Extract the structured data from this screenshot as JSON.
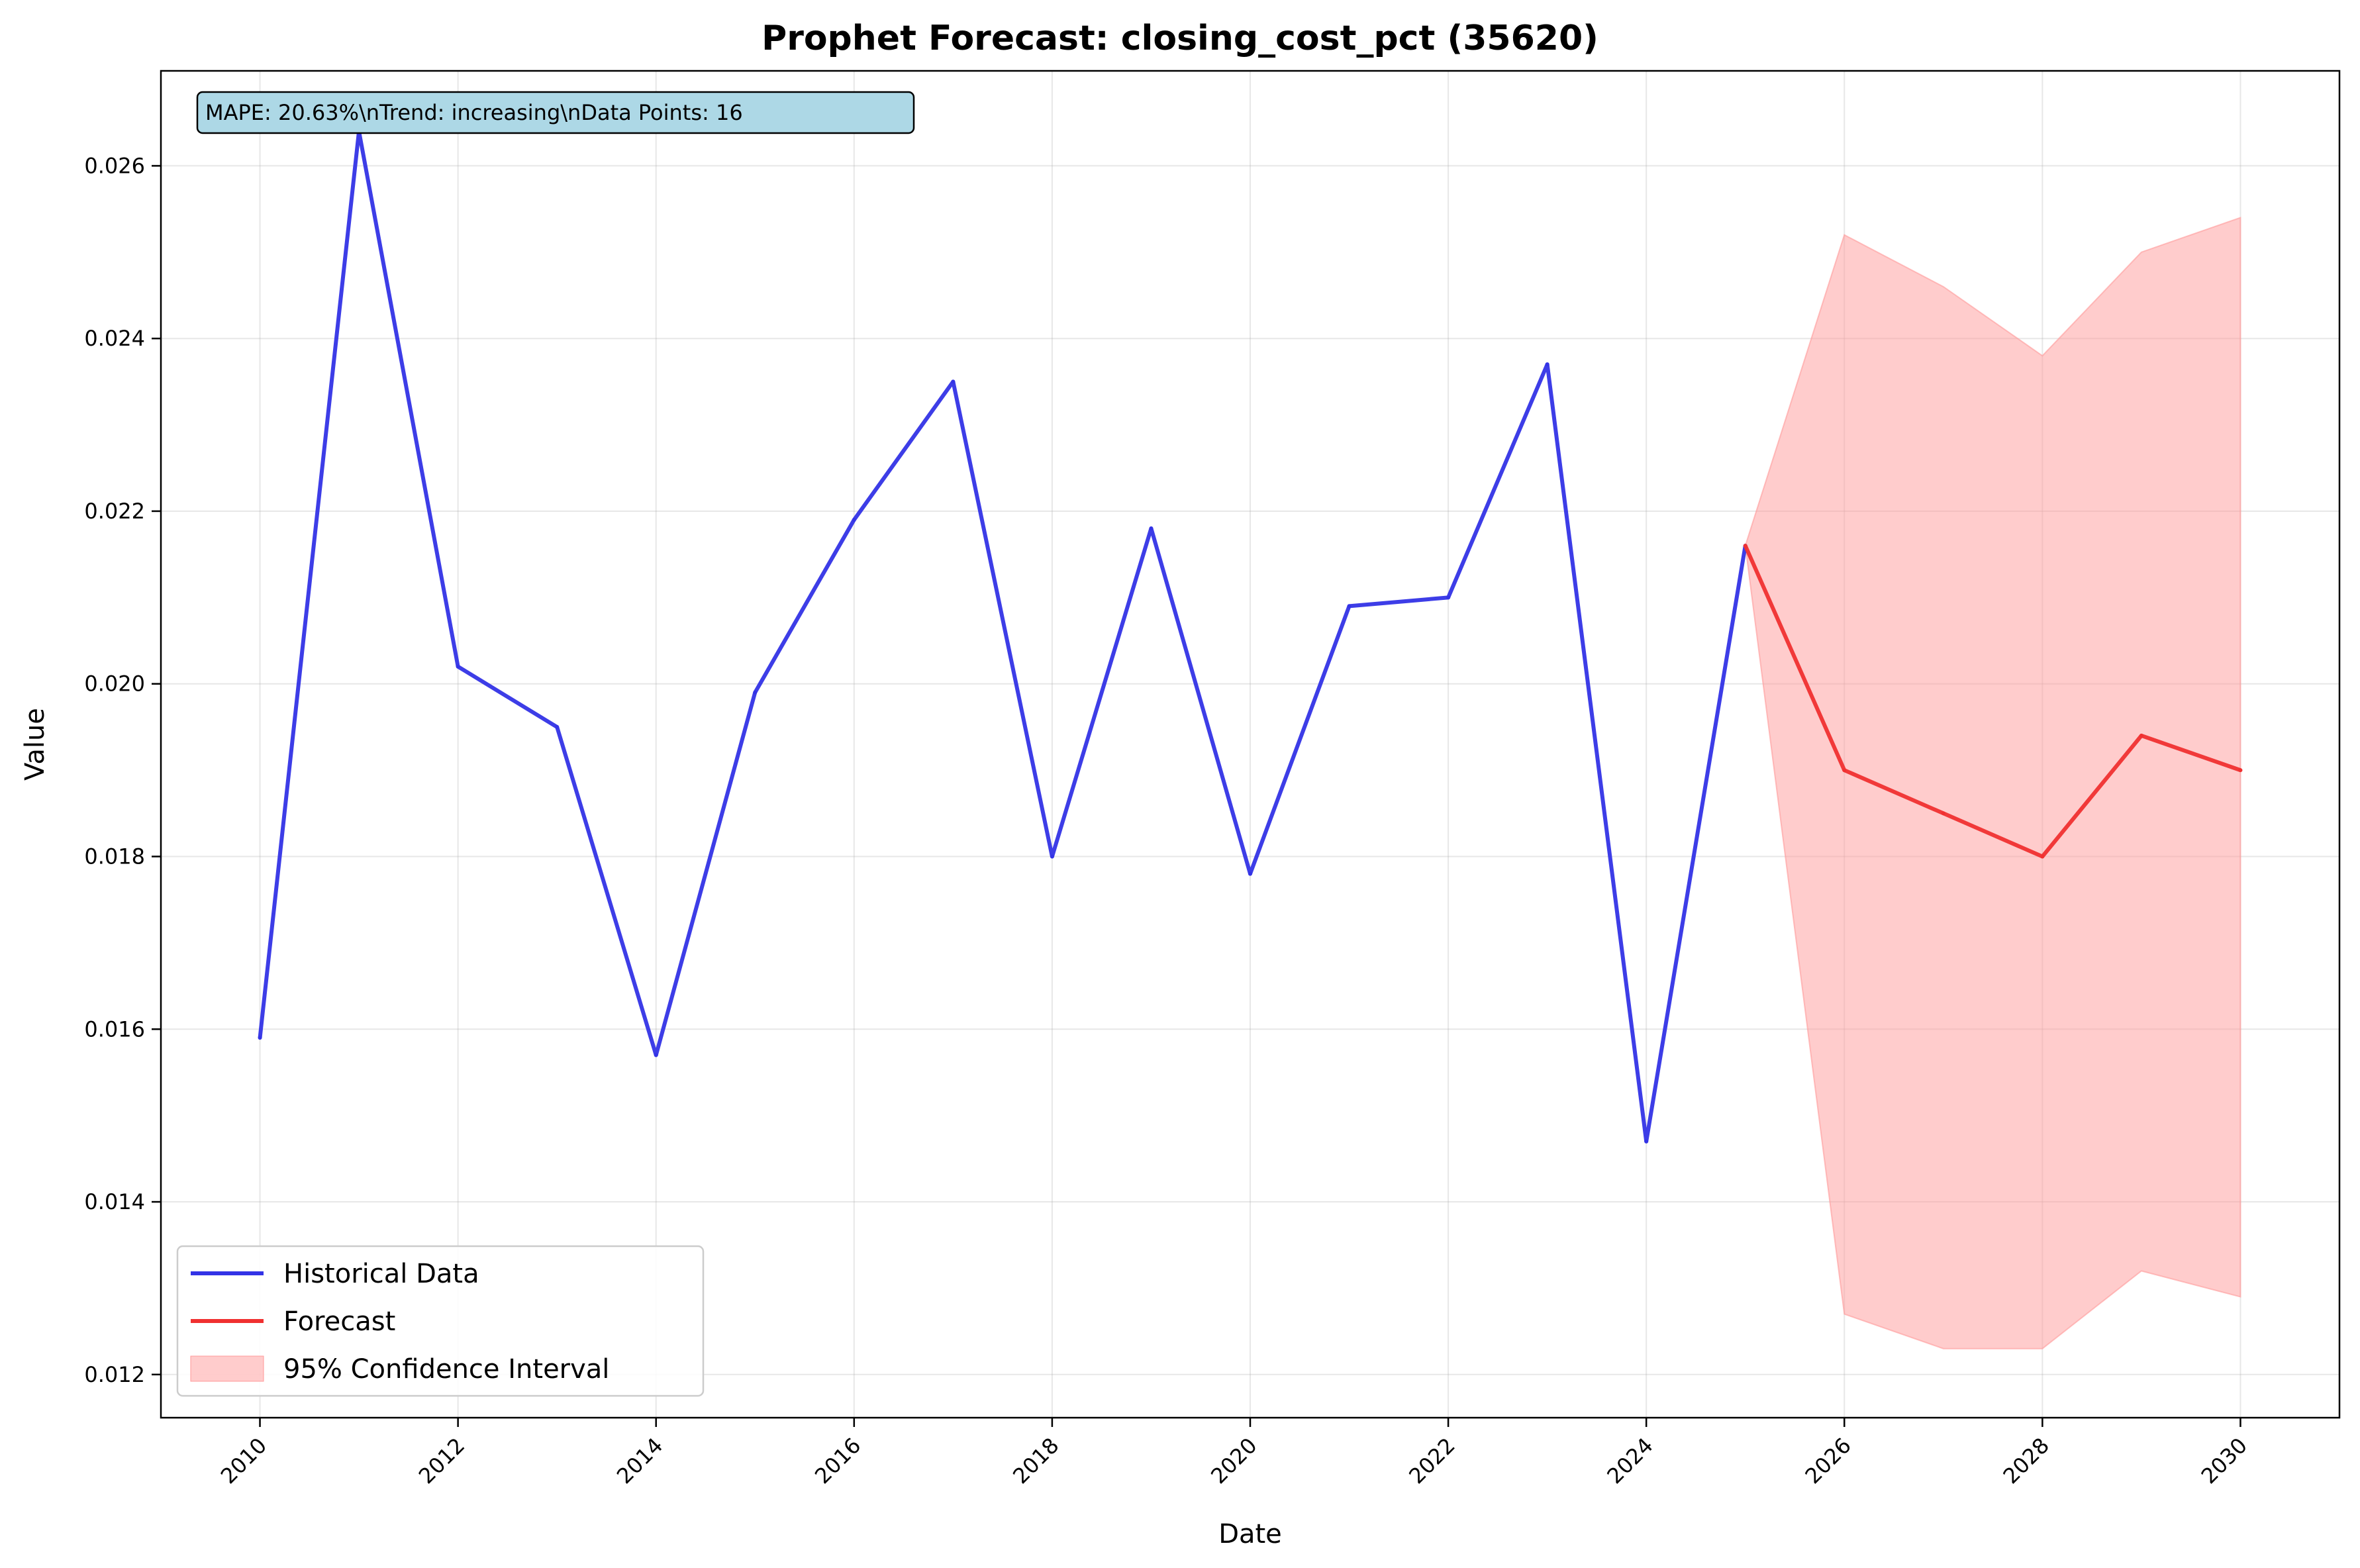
{
  "chart_data": {
    "type": "line",
    "title": "Prophet Forecast: closing_cost_pct (35620)",
    "xlabel": "Date",
    "ylabel": "Value",
    "xlim": [
      2009,
      2031
    ],
    "ylim": [
      0.0115,
      0.0271
    ],
    "x_ticks": [
      2010,
      2012,
      2014,
      2016,
      2018,
      2020,
      2022,
      2024,
      2026,
      2028,
      2030
    ],
    "y_ticks": [
      0.012,
      0.014,
      0.016,
      0.018,
      0.02,
      0.022,
      0.024,
      0.026
    ],
    "y_tick_labels": [
      "0.012",
      "0.014",
      "0.016",
      "0.018",
      "0.020",
      "0.022",
      "0.024",
      "0.026"
    ],
    "grid": true,
    "legend_position": "lower-left",
    "series": [
      {
        "name": "Historical Data",
        "color": "#3333e6",
        "x": [
          2010,
          2011,
          2012,
          2013,
          2014,
          2015,
          2016,
          2017,
          2018,
          2019,
          2020,
          2021,
          2022,
          2023,
          2024,
          2025
        ],
        "values": [
          0.0159,
          0.0264,
          0.0202,
          0.0195,
          0.0157,
          0.0199,
          0.0219,
          0.0235,
          0.018,
          0.0218,
          0.0178,
          0.0209,
          0.021,
          0.0237,
          0.0147,
          0.0216
        ]
      },
      {
        "name": "Forecast",
        "color": "#f03030",
        "x": [
          2025,
          2026,
          2027,
          2028,
          2029,
          2030
        ],
        "values": [
          0.0216,
          0.019,
          0.0185,
          0.018,
          0.0194,
          0.019
        ]
      }
    ],
    "confidence_interval": {
      "name": "95% Confidence Interval",
      "color": "#ff9999",
      "x": [
        2025,
        2026,
        2027,
        2028,
        2029,
        2030
      ],
      "lower": [
        0.0216,
        0.0127,
        0.0123,
        0.0123,
        0.0132,
        0.0129
      ],
      "upper": [
        0.0216,
        0.0252,
        0.0246,
        0.0238,
        0.025,
        0.0254
      ]
    },
    "info_box": "MAPE: 20.63%\\nTrend: increasing\\nData Points: 16"
  }
}
